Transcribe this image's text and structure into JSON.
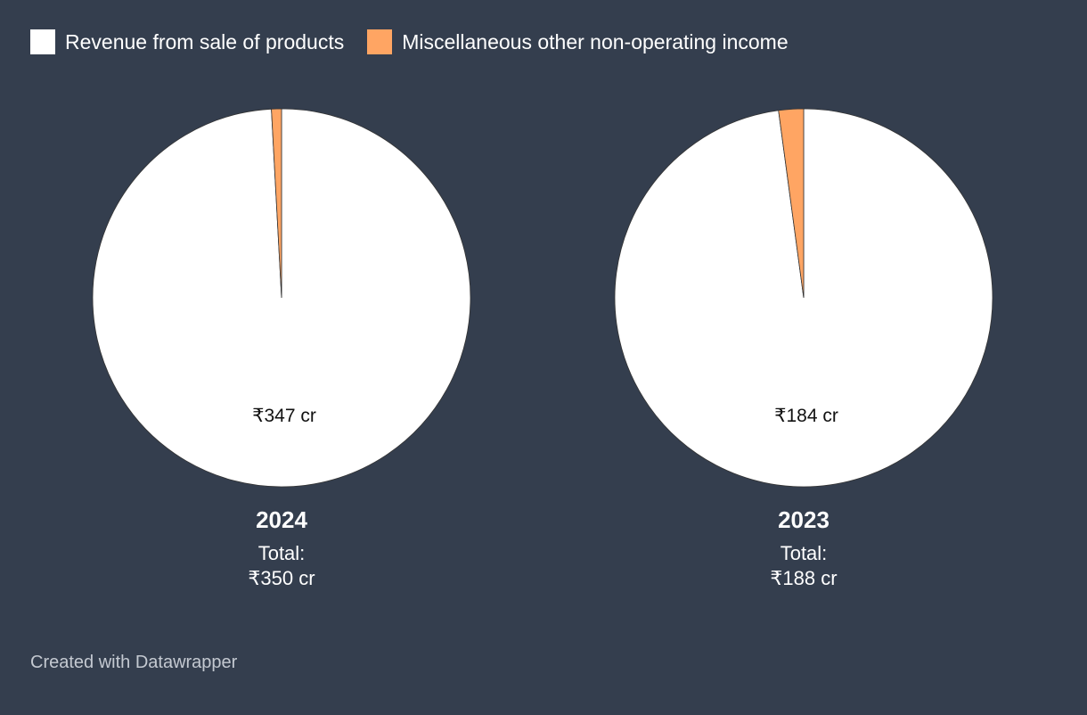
{
  "legend": [
    {
      "label": "Revenue from sale of products",
      "color": "#ffffff"
    },
    {
      "label": "Miscellaneous other non-operating income",
      "color": "#ffa563"
    }
  ],
  "chart_data": [
    {
      "type": "pie",
      "title": "2024",
      "total_line1": "Total:",
      "total_line2": "₹350 cr",
      "slices": [
        {
          "name": "Revenue from sale of products",
          "value": 347,
          "label": "₹347 cr",
          "color": "#ffffff"
        },
        {
          "name": "Miscellaneous other non-operating income",
          "value": 3,
          "label": "",
          "color": "#ffa563"
        }
      ]
    },
    {
      "type": "pie",
      "title": "2023",
      "total_line1": "Total:",
      "total_line2": "₹188 cr",
      "slices": [
        {
          "name": "Revenue from sale of products",
          "value": 184,
          "label": "₹184 cr",
          "color": "#ffffff"
        },
        {
          "name": "Miscellaneous other non-operating income",
          "value": 4,
          "label": "",
          "color": "#ffa563"
        }
      ]
    }
  ],
  "footer": {
    "text": "Created with Datawrapper"
  }
}
